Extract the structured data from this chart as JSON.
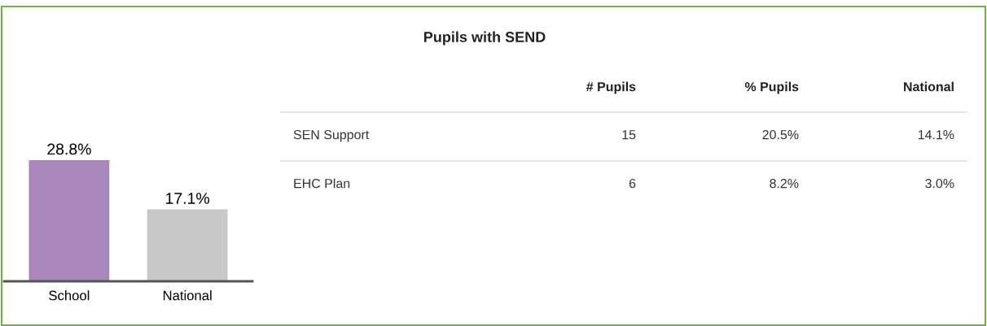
{
  "chart_data": [
    {
      "type": "bar",
      "categories": [
        "School",
        "National"
      ],
      "values": [
        28.8,
        17.1
      ],
      "colors": [
        "#a986bb",
        "#c8c8c8"
      ],
      "value_labels": [
        "28.8%",
        "17.1%"
      ],
      "grid": false,
      "legend": false
    },
    {
      "type": "other",
      "title": "Pupils with SEND",
      "categories": [
        null,
        "# Pupils",
        "% Pupils",
        "National"
      ],
      "y_categories": [
        "SEN Support",
        "EHC Plan"
      ],
      "cell_labels": [
        [
          "15",
          "20.5%",
          "14.1%"
        ],
        [
          "6",
          "8.2%",
          "3.0%"
        ]
      ]
    }
  ]
}
